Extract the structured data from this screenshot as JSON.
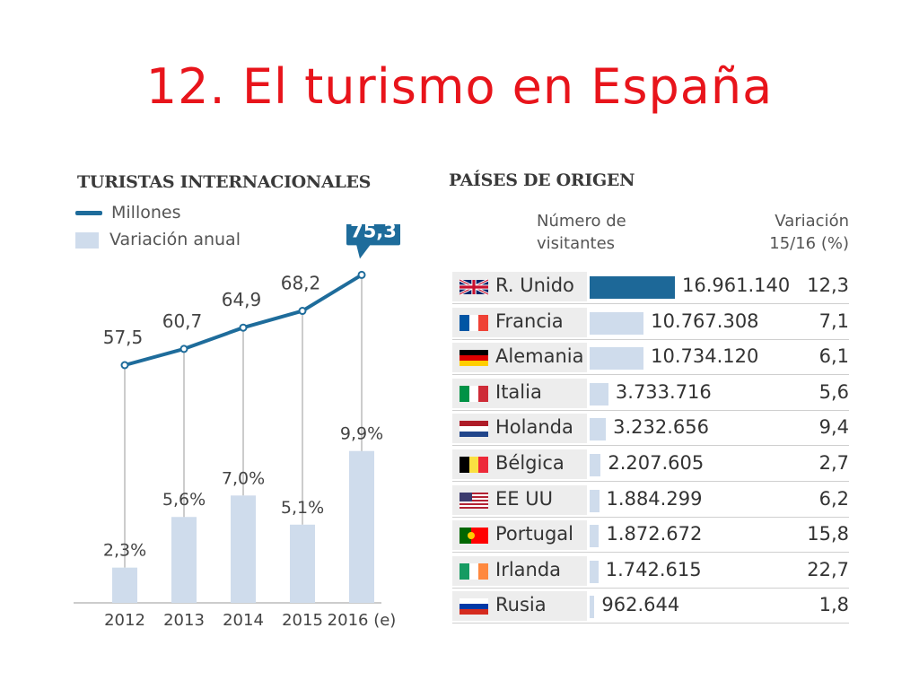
{
  "title": "12. El turismo en España",
  "chart_data": [
    {
      "type": "line",
      "title": "TURISTAS INTERNACIONALES",
      "legend": {
        "line_label": "Millones",
        "bar_label": "Variación anual",
        "placement": "top-left"
      },
      "categories": [
        "2012",
        "2013",
        "2014",
        "2015",
        "2016 (e)"
      ],
      "series": [
        {
          "name": "Millones",
          "type": "line",
          "values": [
            57.5,
            60.7,
            64.9,
            68.2,
            75.3
          ],
          "labels": [
            "57,5",
            "60,7",
            "64,9",
            "68,2",
            "75,3"
          ],
          "color": "#1e6c9b"
        },
        {
          "name": "Variación anual",
          "type": "bar",
          "values": [
            2.3,
            5.6,
            7.0,
            5.1,
            9.9
          ],
          "labels": [
            "2,3%",
            "5,6%",
            "7,0%",
            "5,1%",
            "9,9%"
          ],
          "color": "#cfdcec"
        }
      ],
      "highlight": {
        "index": 4,
        "label": "75,3",
        "color": "#1e6c9b"
      }
    },
    {
      "type": "bar",
      "title": "PAÍSES DE ORIGEN",
      "headers": {
        "visitors": "Número de\nvisitantes",
        "variation": "Variación\n15/16 (%)"
      },
      "categories": [
        "R. Unido",
        "Francia",
        "Alemania",
        "Italia",
        "Holanda",
        "Bélgica",
        "EE UU",
        "Portugal",
        "Irlanda",
        "Rusia"
      ],
      "values": [
        16961140,
        10767308,
        10734120,
        3733716,
        3232656,
        2207605,
        1884299,
        1872672,
        1742615,
        962644
      ],
      "value_labels": [
        "16.961.140",
        "10.767.308",
        "10.734.120",
        "3.733.716",
        "3.232.656",
        "2.207.605",
        "1.884.299",
        "1.872.672",
        "1.742.615",
        "962.644"
      ],
      "variation_labels": [
        "12,3",
        "7,1",
        "6,1",
        "5,6",
        "9,4",
        "2,7",
        "6,2",
        "15,8",
        "22,7",
        "1,8"
      ],
      "flags": [
        "uk-flag-icon",
        "france-flag-icon",
        "germany-flag-icon",
        "italy-flag-icon",
        "netherlands-flag-icon",
        "belgium-flag-icon",
        "usa-flag-icon",
        "portugal-flag-icon",
        "ireland-flag-icon",
        "russia-flag-icon"
      ],
      "colors": {
        "highlight": "#1d6898",
        "bar": "#cfdcec"
      }
    }
  ]
}
